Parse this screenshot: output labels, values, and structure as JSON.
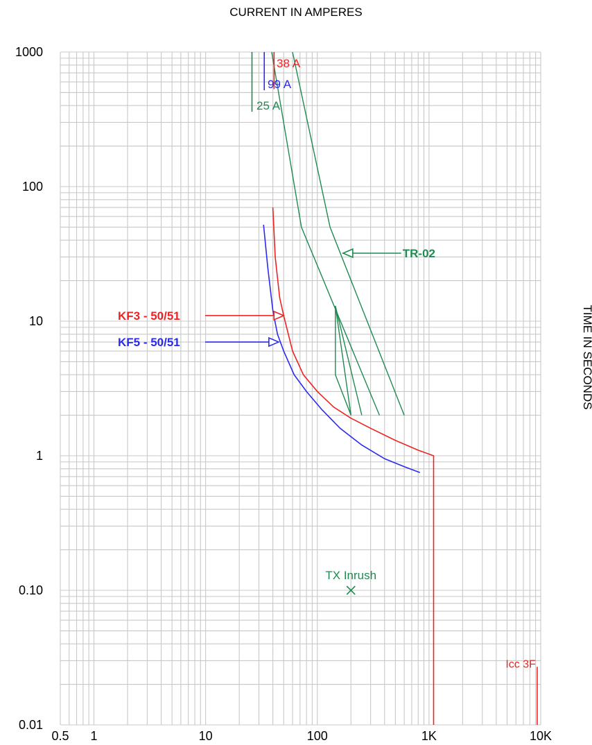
{
  "chart_data": {
    "type": "line",
    "xscale": "log",
    "yscale": "log",
    "xlim": [
      0.5,
      10000
    ],
    "ylim": [
      0.01,
      1000
    ],
    "grid": true,
    "xlabel": "CURRENT IN AMPERES",
    "ylabel": "TIME IN SECONDS",
    "x_tick_labels": [
      {
        "value": 0.5,
        "label": "0.5"
      },
      {
        "value": 1,
        "label": "1"
      },
      {
        "value": 10,
        "label": "10"
      },
      {
        "value": 100,
        "label": "100"
      },
      {
        "value": 1000,
        "label": "1K"
      },
      {
        "value": 10000,
        "label": "10K"
      }
    ],
    "y_tick_labels": [
      {
        "value": 1000,
        "label": "1000"
      },
      {
        "value": 100,
        "label": "100"
      },
      {
        "value": 10,
        "label": "10"
      },
      {
        "value": 1,
        "label": "1"
      },
      {
        "value": 0.1,
        "label": "0.10"
      },
      {
        "value": 0.01,
        "label": "0.01"
      }
    ],
    "colors": {
      "red": "#ee2222",
      "blue": "#2a2aee",
      "green": "#1e8a50",
      "grid": "#c8c8c8"
    },
    "series": [
      {
        "name": "KF3 - 50/51",
        "color": "#ee2222",
        "points": [
          [
            40,
            70
          ],
          [
            42,
            30
          ],
          [
            46,
            15
          ],
          [
            50,
            11
          ],
          [
            60,
            6
          ],
          [
            75,
            4
          ],
          [
            100,
            3
          ],
          [
            140,
            2.3
          ],
          [
            200,
            1.9
          ],
          [
            300,
            1.6
          ],
          [
            500,
            1.3
          ],
          [
            800,
            1.1
          ],
          [
            1100,
            1.0
          ],
          [
            1100,
            0.01
          ]
        ]
      },
      {
        "name": "KF5 - 50/51",
        "color": "#2a2aee",
        "points": [
          [
            33,
            52
          ],
          [
            36,
            25
          ],
          [
            40,
            12
          ],
          [
            44,
            8
          ],
          [
            50,
            6
          ],
          [
            62,
            4
          ],
          [
            80,
            3
          ],
          [
            110,
            2.2
          ],
          [
            160,
            1.6
          ],
          [
            250,
            1.2
          ],
          [
            400,
            0.95
          ],
          [
            600,
            0.83
          ],
          [
            830,
            0.75
          ]
        ]
      },
      {
        "name": "TR-02",
        "color": "#1e8a50",
        "segments": [
          [
            [
              39,
              1000
            ],
            [
              72,
              50
            ],
            [
              360,
              2
            ]
          ],
          [
            [
              60,
              1000
            ],
            [
              130,
              50
            ],
            [
              600,
              2
            ]
          ],
          [
            [
              145,
              13
            ],
            [
              145,
              4
            ],
            [
              200,
              2
            ],
            [
              145,
              13
            ],
            [
              250,
              2
            ]
          ]
        ]
      }
    ],
    "vertical_markers": [
      {
        "label": "38 A",
        "x": 41,
        "y_range": [
          530,
          1000
        ],
        "color": "#ee2222"
      },
      {
        "label": "99 A",
        "x": 33.5,
        "y_range": [
          520,
          1000
        ],
        "color": "#2a2aee"
      },
      {
        "label": "25 A",
        "x": 26,
        "y_range": [
          360,
          1000
        ],
        "color": "#1e8a50"
      }
    ],
    "fault_marker": {
      "label": "Icc 3F",
      "x": 9300,
      "y_range": [
        0.01,
        0.027
      ],
      "color": "#ee2222"
    },
    "point_markers": [
      {
        "label": "TX Inrush",
        "x": 200,
        "y": 0.1,
        "symbol": "X",
        "color": "#1e8a50"
      }
    ],
    "annotations": [
      {
        "label": "KF3 - 50/51",
        "color": "#ee2222",
        "label_at": [
          5.5,
          11
        ],
        "arrow_to": [
          50,
          11
        ]
      },
      {
        "label": "KF5 - 50/51",
        "color": "#2a2aee",
        "label_at": [
          5.5,
          7
        ],
        "arrow_to": [
          45,
          7
        ]
      },
      {
        "label": "TR-02",
        "color": "#1e8a50",
        "label_at": [
          580,
          32
        ],
        "arrow_to": [
          170,
          32
        ]
      }
    ]
  }
}
